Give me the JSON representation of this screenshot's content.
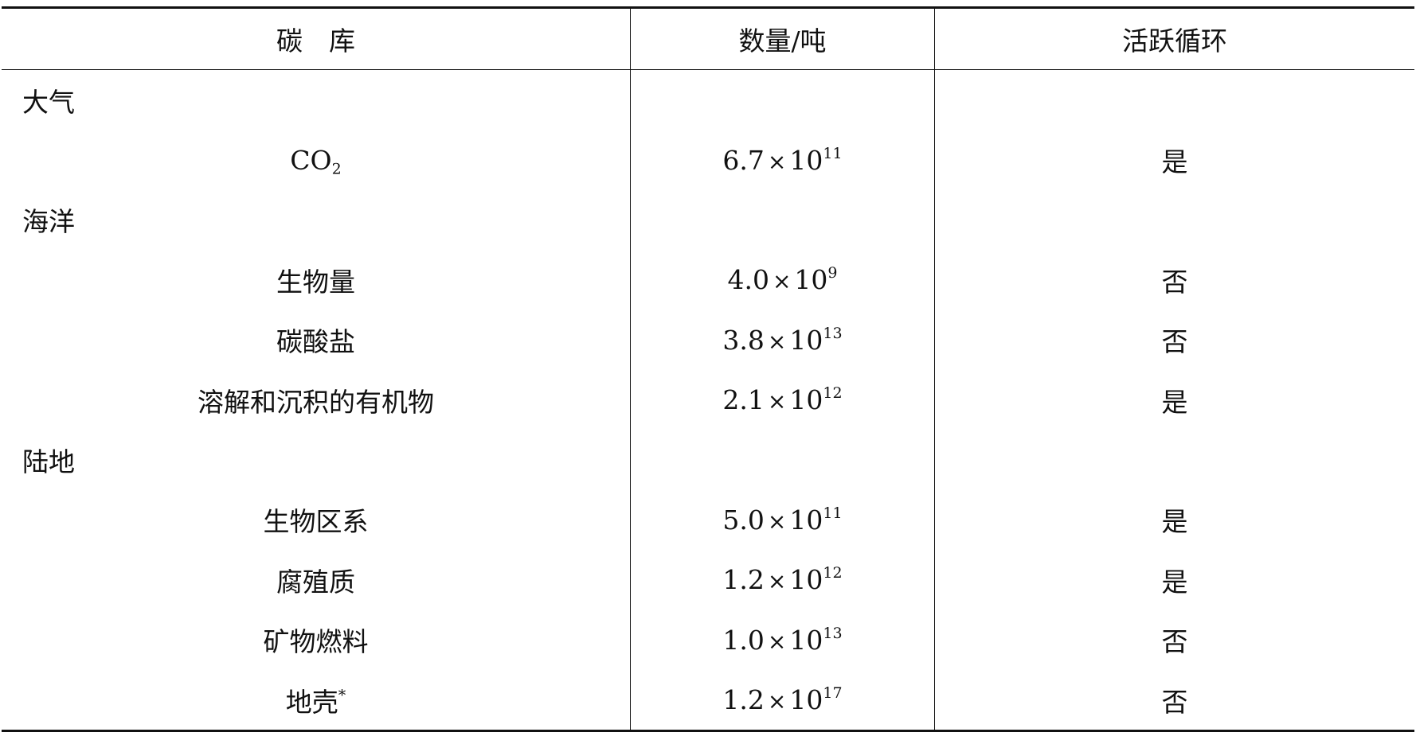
{
  "header": {
    "col1": "碳　库",
    "col2": "数量/吨",
    "col3": "活跃循环"
  },
  "rows": [
    {
      "type": "category",
      "name": "大气"
    },
    {
      "type": "item",
      "name": "CO",
      "sub": "2",
      "mantissa": "6.7",
      "exponent": "11",
      "active": "是"
    },
    {
      "type": "category",
      "name": "海洋"
    },
    {
      "type": "item",
      "name": "生物量",
      "mantissa": "4.0",
      "exponent": "9",
      "active": "否"
    },
    {
      "type": "item",
      "name": "碳酸盐",
      "mantissa": "3.8",
      "exponent": "13",
      "active": "否"
    },
    {
      "type": "item",
      "name": "溶解和沉积的有机物",
      "mantissa": "2.1",
      "exponent": "12",
      "active": "是"
    },
    {
      "type": "category",
      "name": "陆地"
    },
    {
      "type": "item",
      "name": "生物区系",
      "mantissa": "5.0",
      "exponent": "11",
      "active": "是"
    },
    {
      "type": "item",
      "name": "腐殖质",
      "mantissa": "1.2",
      "exponent": "12",
      "active": "是"
    },
    {
      "type": "item",
      "name": "矿物燃料",
      "mantissa": "1.0",
      "exponent": "13",
      "active": "否"
    },
    {
      "type": "item",
      "name": "地壳",
      "sup": "*",
      "mantissa": "1.2",
      "exponent": "17",
      "active": "否"
    }
  ],
  "times_sign": "×",
  "base": "10"
}
